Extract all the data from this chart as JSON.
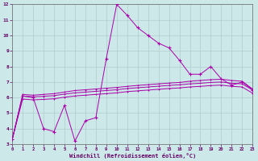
{
  "xlabel": "Windchill (Refroidissement éolien,°C)",
  "background_color": "#cce8e8",
  "grid_color": "#b0cccc",
  "line_color": "#aa00aa",
  "xlim": [
    0,
    23
  ],
  "ylim": [
    3,
    12
  ],
  "xticks": [
    0,
    1,
    2,
    3,
    4,
    5,
    6,
    7,
    8,
    9,
    10,
    11,
    12,
    13,
    14,
    15,
    16,
    17,
    18,
    19,
    20,
    21,
    22,
    23
  ],
  "yticks": [
    3,
    4,
    5,
    6,
    7,
    8,
    9,
    10,
    11,
    12
  ],
  "series_main": [
    0,
    1,
    2,
    3,
    4,
    5,
    6,
    7,
    8,
    9,
    10,
    11,
    12,
    13,
    14,
    15,
    16,
    17,
    18,
    19,
    20,
    21,
    22,
    23
  ],
  "y_main": [
    3.3,
    6.1,
    6.0,
    4.0,
    3.8,
    5.5,
    3.2,
    4.5,
    4.7,
    8.5,
    12.0,
    11.3,
    10.5,
    10.0,
    9.5,
    9.2,
    8.4,
    7.5,
    7.5,
    8.0,
    7.2,
    6.8,
    7.0,
    6.5
  ],
  "smooth_lines": [
    [
      3.3,
      6.2,
      6.15,
      6.2,
      6.25,
      6.35,
      6.45,
      6.5,
      6.55,
      6.6,
      6.65,
      6.72,
      6.78,
      6.83,
      6.88,
      6.93,
      6.97,
      7.05,
      7.1,
      7.15,
      7.18,
      7.1,
      7.05,
      6.55
    ],
    [
      3.3,
      6.1,
      6.05,
      6.08,
      6.12,
      6.22,
      6.3,
      6.35,
      6.4,
      6.45,
      6.5,
      6.58,
      6.63,
      6.68,
      6.73,
      6.78,
      6.82,
      6.88,
      6.92,
      6.97,
      7.0,
      6.92,
      6.88,
      6.48
    ],
    [
      3.3,
      5.9,
      5.85,
      5.88,
      5.92,
      6.02,
      6.1,
      6.15,
      6.2,
      6.25,
      6.3,
      6.38,
      6.43,
      6.48,
      6.53,
      6.58,
      6.62,
      6.68,
      6.72,
      6.77,
      6.8,
      6.72,
      6.68,
      6.28
    ]
  ]
}
